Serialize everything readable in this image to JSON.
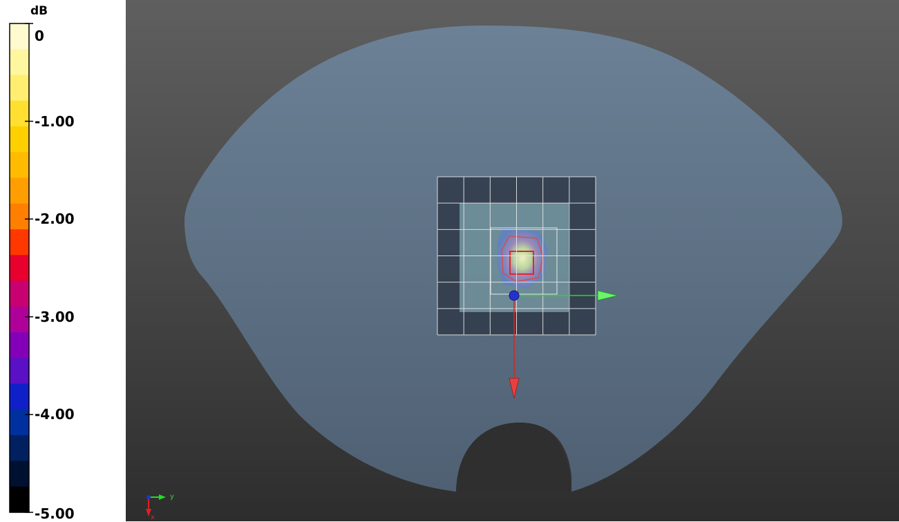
{
  "colorbar": {
    "unit": "dB",
    "ticks": [
      {
        "label": "0",
        "value": 0
      },
      {
        "label": "-1.00",
        "value": -1
      },
      {
        "label": "-2.00",
        "value": -2
      },
      {
        "label": "-3.00",
        "value": -3
      },
      {
        "label": "-4.00",
        "value": -4
      },
      {
        "label": "-5.00",
        "value": -5
      }
    ],
    "range": [
      -5,
      0
    ],
    "colors_top_to_bottom": [
      "#fffbd0",
      "#fff6a0",
      "#ffee70",
      "#ffe030",
      "#ffd000",
      "#ffbb00",
      "#ff9e00",
      "#ff7f00",
      "#ff3800",
      "#e8002e",
      "#c80070",
      "#b0009a",
      "#8400b8",
      "#5a10c4",
      "#1020c8",
      "#0030a0",
      "#002060",
      "#001030",
      "#000000"
    ]
  },
  "axes_triad": {
    "y_label": "y",
    "x_label": "x",
    "y_color": "#22dd22",
    "x_color": "#dd2222"
  },
  "scene": {
    "background_top": "#5f5f5f",
    "background_bottom": "#2d2d2d",
    "phantom_color": "#6b7f93",
    "grid_color": "#e8e8e8",
    "y_axis_color": "#22dd22",
    "x_axis_color": "#dd2222",
    "origin_color": "#2233cc"
  }
}
